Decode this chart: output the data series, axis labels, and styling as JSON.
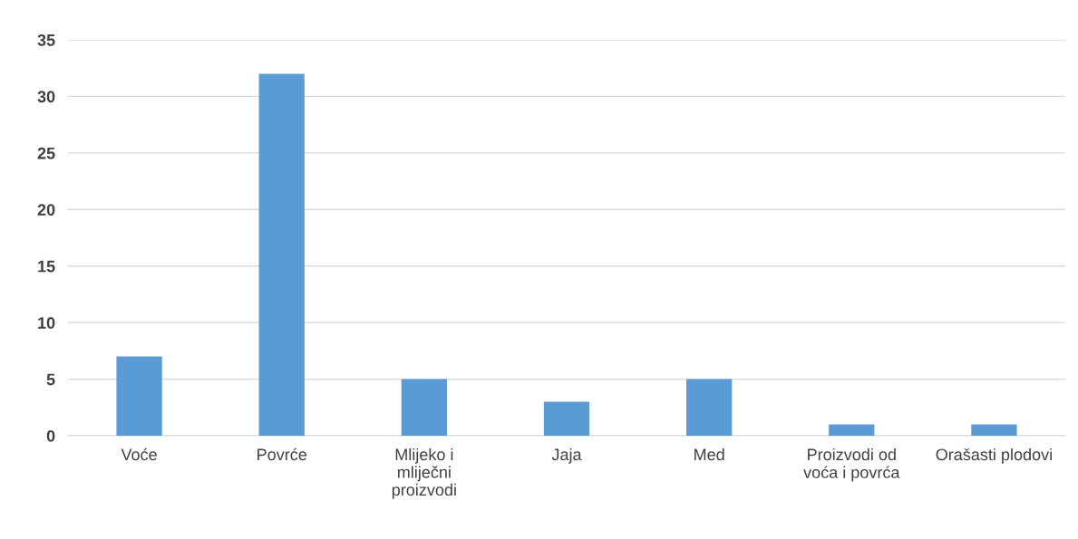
{
  "chart_data": {
    "type": "bar",
    "categories": [
      "Voće",
      "Povrće",
      "Mlijeko i mliječni proizvodi",
      "Jaja",
      "Med",
      "Proizvodi od voća i povrća",
      "Orašasti plodovi"
    ],
    "values": [
      7,
      32,
      5,
      3,
      5,
      1,
      1
    ],
    "color": "#5b9bd5",
    "ylim": [
      0,
      35
    ],
    "yticks": [
      0,
      5,
      10,
      15,
      20,
      25,
      30,
      35
    ],
    "grid": "y",
    "legend": false
  }
}
